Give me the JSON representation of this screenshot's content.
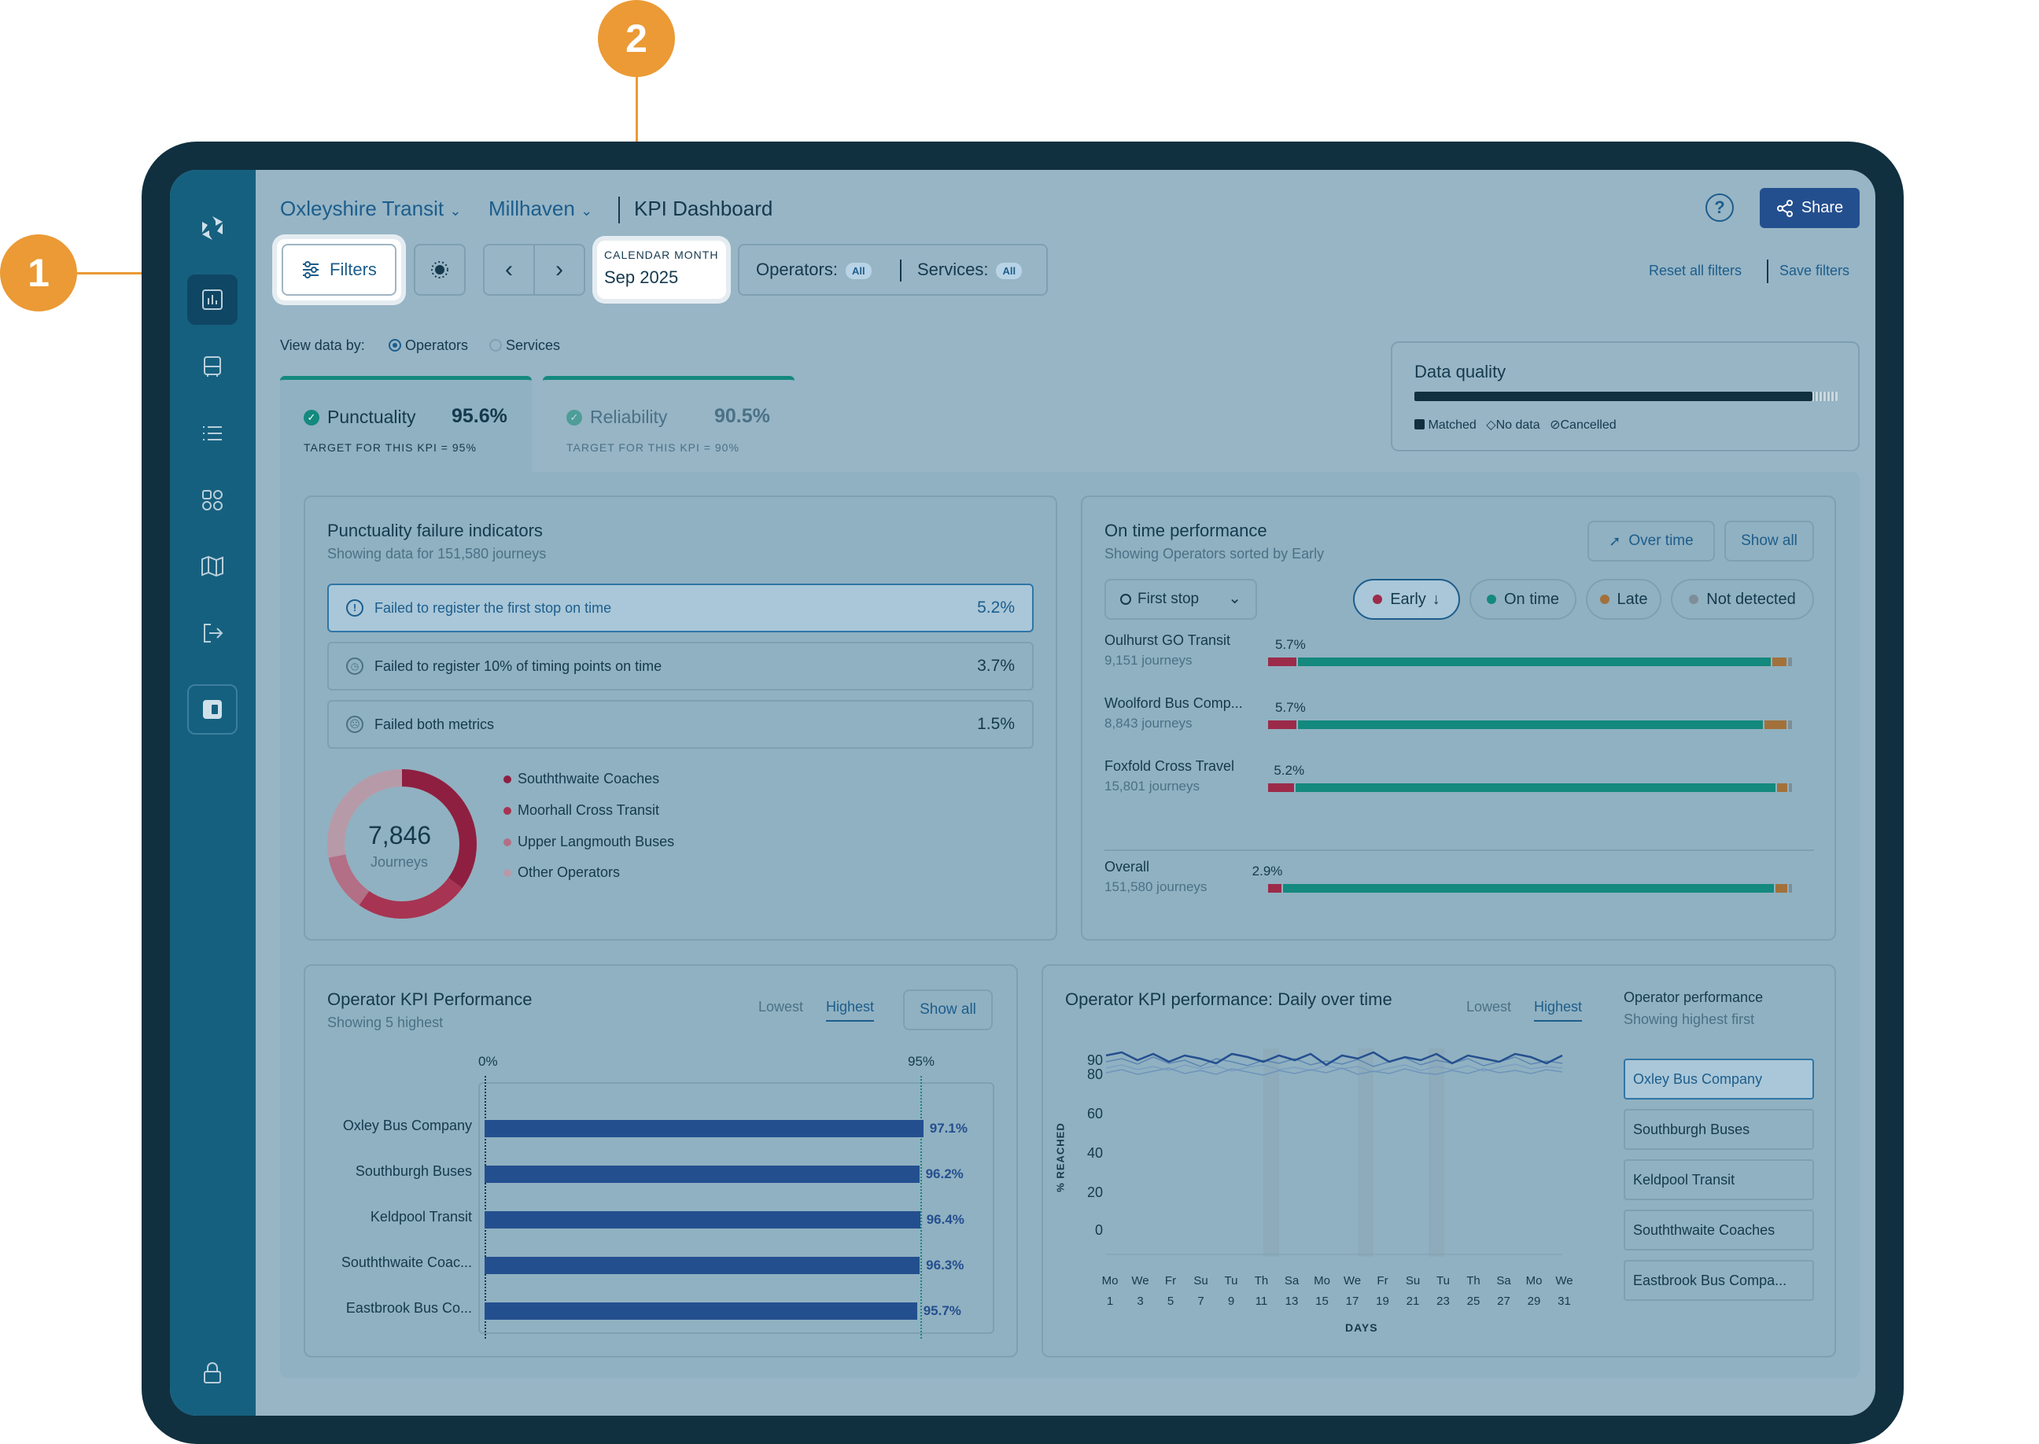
{
  "callouts": [
    "1",
    "2"
  ],
  "header": {
    "org": "Oxleyshire Transit",
    "region": "Millhaven",
    "page_title": "KPI Dashboard",
    "share_label": "Share",
    "help_icon": "help-icon"
  },
  "toolbar": {
    "filters_label": "Filters",
    "calendar_label": "CALENDAR MONTH",
    "calendar_value": "Sep 2025",
    "operators_label": "Operators:",
    "operators_value": "All",
    "services_label": "Services:",
    "services_value": "All",
    "reset_label": "Reset all filters",
    "save_label": "Save filters"
  },
  "view_by": {
    "label": "View data by:",
    "options": [
      "Operators",
      "Services"
    ],
    "selected": "Operators"
  },
  "kpi_tabs": [
    {
      "name": "Punctuality",
      "value": "95.6%",
      "target": "TARGET FOR THIS KPI = 95%"
    },
    {
      "name": "Reliability",
      "value": "90.5%",
      "target": "TARGET FOR THIS KPI = 90%"
    }
  ],
  "data_quality": {
    "title": "Data quality",
    "matched_fraction": 0.94,
    "legend": [
      "Matched",
      "No data",
      "Cancelled"
    ]
  },
  "failure": {
    "title": "Punctuality failure indicators",
    "subtitle": "Showing data for 151,580 journeys",
    "rows": [
      {
        "label": "Failed to register the first stop on time",
        "value": "5.2%"
      },
      {
        "label": "Failed to register 10% of timing points on time",
        "value": "3.7%"
      },
      {
        "label": "Failed both metrics",
        "value": "1.5%"
      }
    ],
    "donut_value": "7,846",
    "donut_label": "Journeys",
    "legend": [
      "Souththwaite Coaches",
      "Moorhall Cross Transit",
      "Upper Langmouth Buses",
      "Other Operators"
    ]
  },
  "ontime": {
    "title": "On time performance",
    "subtitle": "Showing Operators sorted by Early",
    "over_time_label": "Over time",
    "show_all_label": "Show all",
    "dropdown_label": "First stop",
    "filters": [
      "Early",
      "On time",
      "Late",
      "Not detected"
    ],
    "rows": [
      {
        "name": "Oulhurst GO Transit",
        "journeys": "9,151 journeys",
        "early": "5.7%",
        "early_f": 0.057,
        "ontime_f": 0.905,
        "late_f": 0.03
      },
      {
        "name": "Woolford Bus Comp...",
        "journeys": "8,843 journeys",
        "early": "5.7%",
        "early_f": 0.057,
        "ontime_f": 0.89,
        "late_f": 0.045
      },
      {
        "name": "Foxfold Cross Travel",
        "journeys": "15,801 journeys",
        "early": "5.2%",
        "early_f": 0.052,
        "ontime_f": 0.92,
        "late_f": 0.022
      },
      {
        "name": "Overall",
        "journeys": "151,580 journeys",
        "early": "2.9%",
        "early_f": 0.029,
        "ontime_f": 0.94,
        "late_f": 0.025
      }
    ]
  },
  "operator_kpi": {
    "title": "Operator KPI Performance",
    "subtitle": "Showing 5 highest",
    "sort_options": [
      "Lowest",
      "Highest"
    ],
    "active_sort": "Highest",
    "show_all_label": "Show all",
    "axis_start": "0%",
    "target_label": "95%"
  },
  "chart_data": {
    "type": "bar",
    "categories": [
      "Oxley Bus Company",
      "Southburgh Buses",
      "Keldpool Transit",
      "Souththwaite Coac...",
      "Eastbrook Bus Co..."
    ],
    "values": [
      97.1,
      96.2,
      96.4,
      96.3,
      95.7
    ],
    "value_labels": [
      "97.1%",
      "96.2%",
      "96.4%",
      "96.3%",
      "95.7%"
    ],
    "xlim": [
      0,
      100
    ],
    "target": 95,
    "color": "#244f8f"
  },
  "daily": {
    "title": "Operator KPI performance: Daily over time",
    "sort_options": [
      "Lowest",
      "Highest"
    ],
    "active_sort": "Highest",
    "ylabel": "% REACHED",
    "xlabel": "DAYS",
    "y_ticks": [
      "90",
      "80",
      "60",
      "40",
      "20",
      "0"
    ],
    "days": [
      "Mo",
      "We",
      "Fr",
      "Su",
      "Tu",
      "Th",
      "Sa",
      "Mo",
      "We",
      "Fr",
      "Su",
      "Tu",
      "Th",
      "Sa",
      "Mo",
      "We"
    ],
    "dates": [
      "1",
      "3",
      "5",
      "7",
      "9",
      "11",
      "13",
      "15",
      "17",
      "19",
      "21",
      "23",
      "25",
      "27",
      "29",
      "31"
    ],
    "perf_title": "Operator performance",
    "perf_subtitle": "Showing highest first",
    "operators": [
      "Oxley Bus Company",
      "Southburgh Buses",
      "Keldpool Transit",
      "Souththwaite Coaches",
      "Eastbrook Bus Compa..."
    ],
    "selected_operator": "Oxley Bus Company"
  },
  "colors": {
    "early": "#9c2b4a",
    "ontime": "#14897e",
    "late": "#a2713a",
    "notdetected": "#7d8e98",
    "accent": "#244f8f",
    "callout": "#eb9a35"
  }
}
